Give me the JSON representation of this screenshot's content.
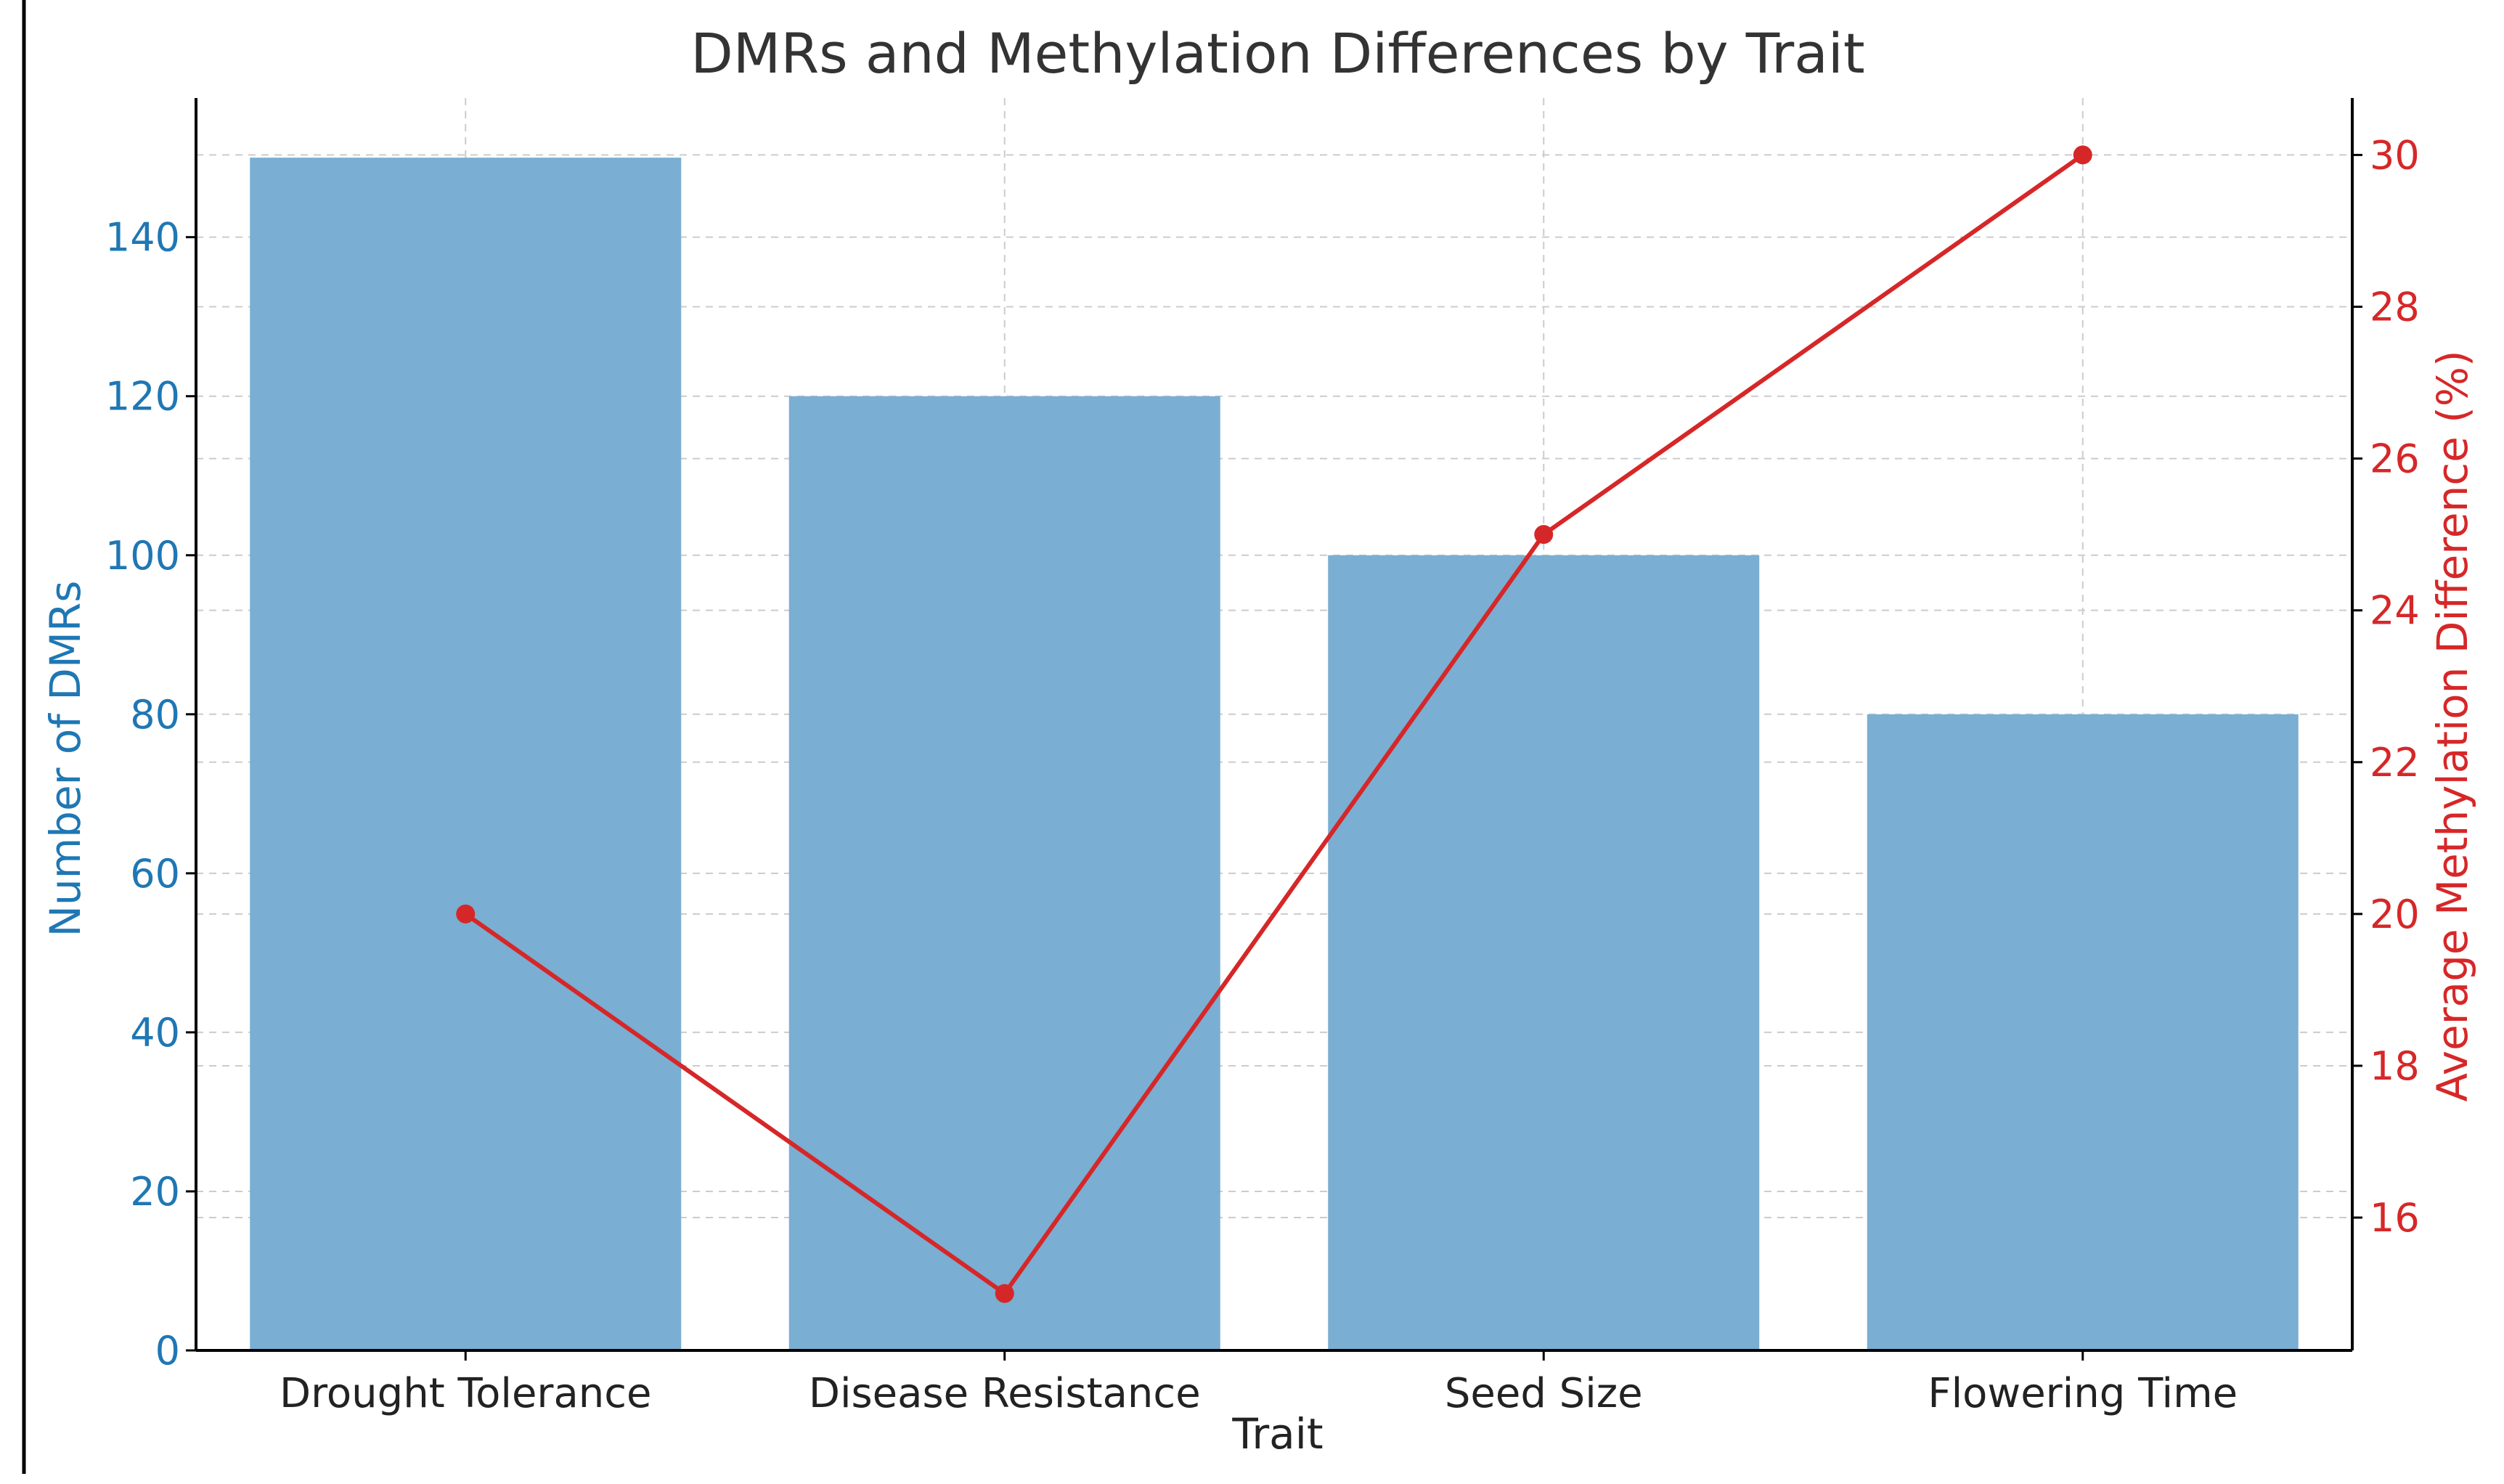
{
  "chart_data": {
    "type": "bar+line",
    "title": "DMRs and Methylation Differences by Trait",
    "xlabel": "Trait",
    "ylabel_left": "Number of DMRs",
    "ylabel_right": "Average Methylation Difference (%)",
    "categories": [
      "Drought Tolerance",
      "Disease Resistance",
      "Seed Size",
      "Flowering Time"
    ],
    "series": [
      {
        "name": "Number of DMRs",
        "kind": "bar",
        "axis": "left",
        "values": [
          150,
          120,
          100,
          80
        ]
      },
      {
        "name": "Average Methylation Difference (%)",
        "kind": "line",
        "axis": "right",
        "values": [
          20,
          15,
          25,
          30
        ]
      }
    ],
    "ylim_left": [
      0,
      157.5
    ],
    "yticks_left": [
      0,
      20,
      40,
      60,
      80,
      100,
      120,
      140
    ],
    "ylim_right": [
      14.25,
      30.75
    ],
    "yticks_right": [
      16,
      18,
      20,
      22,
      24,
      26,
      28,
      30
    ],
    "grid": true,
    "colors": {
      "bar": "#7aaed2",
      "line": "#d62728",
      "left_axis": "#1f77b4",
      "right_axis": "#d62728"
    }
  }
}
